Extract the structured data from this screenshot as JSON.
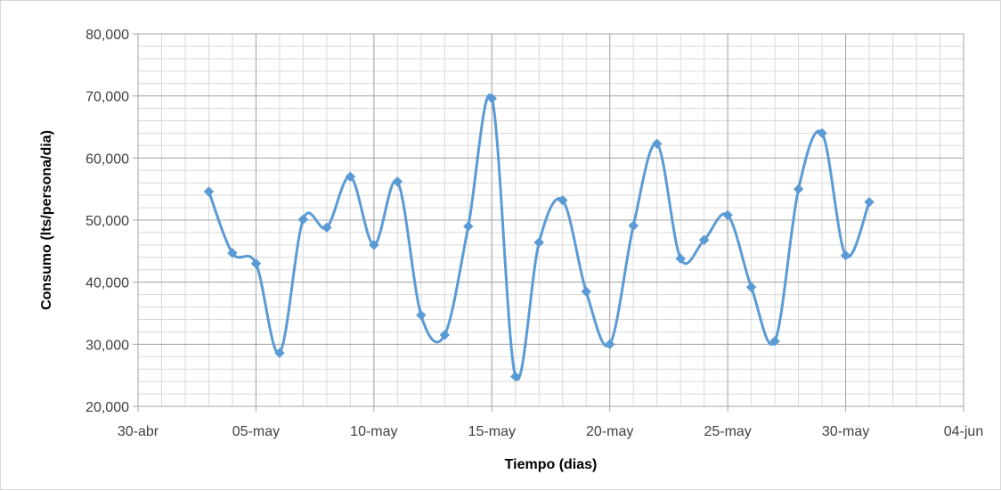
{
  "chart_data": {
    "type": "line",
    "title": "",
    "xlabel": "Tiempo (dias)",
    "ylabel": "Consumo (lts/persona/dia)",
    "x_axis": {
      "kind": "date",
      "range": [
        "2024-04-30",
        "2024-06-04"
      ],
      "major_ticks": [
        "2024-04-30",
        "2024-05-05",
        "2024-05-10",
        "2024-05-15",
        "2024-05-20",
        "2024-05-25",
        "2024-05-30",
        "2024-06-04"
      ],
      "tick_labels": [
        "30-abr",
        "05-may",
        "10-may",
        "15-may",
        "20-may",
        "25-may",
        "30-may",
        "04-jun"
      ],
      "minor_gridlines": "daily"
    },
    "y_axis": {
      "range": [
        20000,
        80000
      ],
      "major_ticks": [
        20000,
        30000,
        40000,
        50000,
        60000,
        70000,
        80000
      ],
      "tick_labels": [
        "20,000",
        "30,000",
        "40,000",
        "50,000",
        "60,000",
        "70,000",
        "80,000"
      ],
      "minor_step": 2000
    },
    "grid": true,
    "smoothed": true,
    "marker": "diamond",
    "series": [
      {
        "color": "#5b9bd5",
        "x": [
          "2024-05-03",
          "2024-05-04",
          "2024-05-05",
          "2024-05-06",
          "2024-05-07",
          "2024-05-08",
          "2024-05-09",
          "2024-05-10",
          "2024-05-11",
          "2024-05-12",
          "2024-05-13",
          "2024-05-14",
          "2024-05-15",
          "2024-05-16",
          "2024-05-17",
          "2024-05-18",
          "2024-05-19",
          "2024-05-20",
          "2024-05-21",
          "2024-05-22",
          "2024-05-23",
          "2024-05-24",
          "2024-05-25",
          "2024-05-26",
          "2024-05-27",
          "2024-05-28",
          "2024-05-29",
          "2024-05-30",
          "2024-05-31"
        ],
        "y": [
          54600,
          44700,
          43000,
          28600,
          50100,
          48800,
          57000,
          46000,
          56200,
          34700,
          31500,
          49000,
          69600,
          24800,
          46400,
          53200,
          38500,
          30000,
          49100,
          62300,
          43800,
          46800,
          50800,
          39200,
          30500,
          55000,
          64000,
          44300,
          52900
        ]
      }
    ]
  }
}
